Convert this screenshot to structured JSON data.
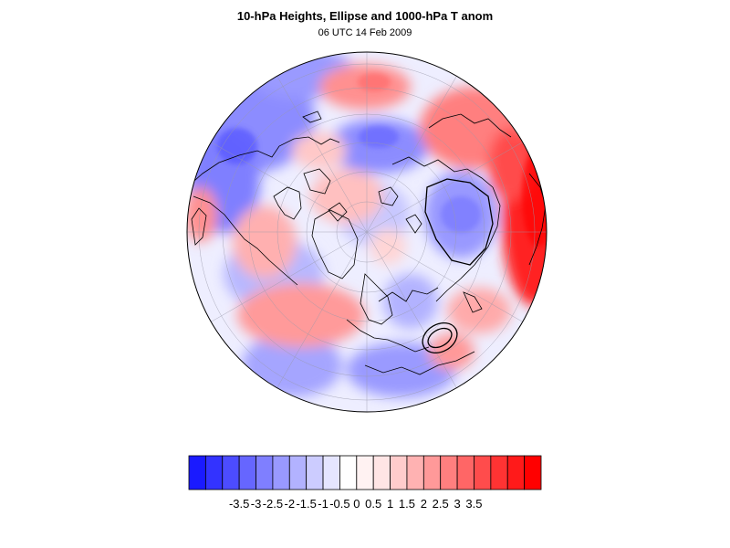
{
  "header": {
    "title": "10-hPa Heights, Ellipse and 1000-hPa T anom",
    "subtitle": "06 UTC 14 Feb 2009"
  },
  "colorbar": {
    "labels": [
      "-3.5",
      "-3",
      "-2.5",
      "-2",
      "-1.5",
      "-1",
      "-0.5",
      "0",
      "0.5",
      "1",
      "1.5",
      "2",
      "2.5",
      "3",
      "3.5"
    ],
    "colors": [
      "#1a1aff",
      "#3333ff",
      "#4c4cff",
      "#6666ff",
      "#7f7fff",
      "#9999ff",
      "#b2b2ff",
      "#ccccff",
      "#e5e5ff",
      "#ffffff",
      "#fff2f2",
      "#ffe5e5",
      "#ffcccc",
      "#ffb2b2",
      "#ff9999",
      "#ff7f7f",
      "#ff6666",
      "#ff4c4c",
      "#ff3333",
      "#ff1a1a",
      "#ff0000"
    ]
  },
  "map": {
    "projection": "orthographic, north-pole centered",
    "features": [
      "1000-hPa temperature anomaly shading",
      "coastlines",
      "lat/lon graticule",
      "10-hPa ellipse contours"
    ]
  }
}
